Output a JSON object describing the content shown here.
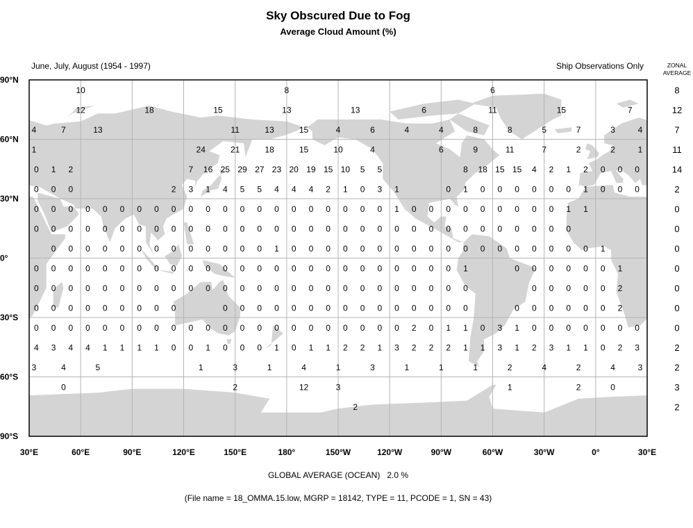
{
  "title": "Sky Obscured Due to Fog",
  "subtitle": "Average Cloud Amount (%)",
  "period": "June, July, August (1954 - 1997)",
  "source_note": "Ship Observations Only",
  "zonal_header": [
    "ZONAL",
    "AVERAGE"
  ],
  "global_average": "GLOBAL AVERAGE (OCEAN)   2.0 %",
  "file_info": "(File name = 18_OMMA.15.low, MGRP = 18142, TYPE = 11, PCODE = 1, SN = 43)",
  "colors": {
    "land": "#d4d4d4",
    "grid": "#b4b4b4",
    "frame": "#000000"
  },
  "chart_data": {
    "type": "heatmap",
    "projection": "equirectangular",
    "lon_range": [
      "30°E",
      "30°E"
    ],
    "lat_range": [
      "90°N",
      "90°S"
    ],
    "lat_labels": [
      "90°N",
      "60°N",
      "30°N",
      "0°",
      "30°S",
      "60°S",
      "90°S"
    ],
    "lon_labels": [
      "30°E",
      "60°E",
      "90°E",
      "120°E",
      "150°E",
      "180°",
      "150°W",
      "120°W",
      "90°W",
      "60°W",
      "30°W",
      "0°",
      "30°E"
    ],
    "grid": true,
    "units": "%",
    "rows": [
      {
        "lat": 85,
        "lon_start": 60,
        "lon_step": 120,
        "values": [
          10,
          8,
          6
        ]
      },
      {
        "lat": 75,
        "lon_start": 60,
        "lon_step": 40,
        "values": [
          12,
          18,
          15,
          13,
          13,
          6,
          11,
          15,
          7
        ]
      },
      {
        "lat": 65,
        "lon_start": 30,
        "lon_step": 20,
        "values": [
          4,
          7,
          13,
          null,
          null,
          null,
          11,
          13,
          15,
          4,
          6,
          4,
          4,
          8,
          8,
          5,
          7,
          3,
          4
        ]
      },
      {
        "lat": 55,
        "lon_start": 30,
        "lon_step": 20,
        "values": [
          1,
          null,
          null,
          null,
          null,
          24,
          21,
          18,
          15,
          10,
          4,
          null,
          6,
          9,
          11,
          7,
          2,
          2,
          1
        ]
      },
      {
        "lat": 45,
        "lon_start": 35,
        "lon_step": 10,
        "values": [
          0,
          1,
          2,
          null,
          null,
          null,
          null,
          null,
          null,
          7,
          16,
          25,
          29,
          27,
          23,
          20,
          19,
          15,
          10,
          5,
          5,
          null,
          null,
          null,
          null,
          8,
          18,
          15,
          15,
          4,
          2,
          1,
          2,
          0,
          0,
          0
        ]
      },
      {
        "lat": 35,
        "lon_start": 35,
        "lon_step": 10,
        "values": [
          0,
          0,
          0,
          null,
          null,
          null,
          null,
          null,
          2,
          3,
          1,
          4,
          5,
          5,
          4,
          4,
          4,
          2,
          1,
          0,
          3,
          1,
          null,
          null,
          0,
          1,
          0,
          0,
          0,
          0,
          0,
          0,
          1,
          0,
          0,
          0
        ]
      },
      {
        "lat": 25,
        "lon_start": 35,
        "lon_step": 10,
        "values": [
          0,
          0,
          0,
          0,
          0,
          0,
          0,
          0,
          0,
          0,
          0,
          0,
          0,
          0,
          0,
          0,
          0,
          0,
          0,
          0,
          0,
          1,
          0,
          0,
          0,
          0,
          0,
          0,
          0,
          0,
          0,
          1,
          1,
          null,
          null,
          null
        ]
      },
      {
        "lat": 15,
        "lon_start": 35,
        "lon_step": 10,
        "values": [
          0,
          0,
          0,
          0,
          0,
          0,
          0,
          0,
          0,
          0,
          0,
          0,
          0,
          0,
          0,
          0,
          0,
          0,
          0,
          0,
          0,
          0,
          0,
          0,
          0,
          0,
          0,
          0,
          0,
          0,
          0,
          0,
          null,
          null,
          null,
          null
        ]
      },
      {
        "lat": 5,
        "lon_start": 35,
        "lon_step": 10,
        "values": [
          null,
          0,
          0,
          0,
          0,
          0,
          0,
          0,
          0,
          0,
          0,
          0,
          0,
          0,
          1,
          0,
          0,
          0,
          0,
          0,
          0,
          0,
          0,
          0,
          0,
          0,
          0,
          0,
          0,
          0,
          0,
          0,
          0,
          1,
          null,
          null
        ]
      },
      {
        "lat": -5,
        "lon_start": 35,
        "lon_step": 10,
        "values": [
          0,
          0,
          0,
          0,
          0,
          0,
          0,
          0,
          0,
          0,
          0,
          0,
          0,
          0,
          0,
          0,
          0,
          0,
          0,
          0,
          0,
          0,
          0,
          0,
          0,
          1,
          null,
          null,
          0,
          0,
          0,
          0,
          0,
          0,
          1,
          null
        ]
      },
      {
        "lat": -15,
        "lon_start": 35,
        "lon_step": 10,
        "values": [
          0,
          0,
          0,
          0,
          0,
          0,
          0,
          0,
          0,
          0,
          0,
          0,
          0,
          0,
          0,
          0,
          0,
          0,
          0,
          0,
          0,
          0,
          0,
          0,
          0,
          0,
          null,
          null,
          null,
          0,
          0,
          0,
          0,
          0,
          2,
          null
        ]
      },
      {
        "lat": -25,
        "lon_start": 35,
        "lon_step": 10,
        "values": [
          0,
          0,
          0,
          0,
          0,
          0,
          0,
          0,
          0,
          null,
          null,
          0,
          0,
          0,
          0,
          0,
          0,
          0,
          0,
          0,
          0,
          0,
          0,
          0,
          0,
          0,
          null,
          null,
          0,
          0,
          0,
          0,
          0,
          0,
          2,
          null
        ]
      },
      {
        "lat": -35,
        "lon_start": 35,
        "lon_step": 10,
        "values": [
          0,
          0,
          0,
          0,
          0,
          0,
          0,
          0,
          0,
          0,
          0,
          0,
          0,
          0,
          0,
          0,
          0,
          0,
          0,
          0,
          0,
          0,
          2,
          0,
          1,
          1,
          0,
          3,
          1,
          0,
          0,
          0,
          0,
          0,
          0,
          0
        ]
      },
      {
        "lat": -45,
        "lon_start": 35,
        "lon_step": 10,
        "values": [
          4,
          3,
          4,
          4,
          1,
          1,
          1,
          1,
          0,
          0,
          1,
          0,
          0,
          0,
          1,
          0,
          1,
          1,
          2,
          2,
          1,
          3,
          2,
          2,
          2,
          1,
          1,
          3,
          1,
          2,
          3,
          1,
          1,
          0,
          2,
          3
        ]
      },
      {
        "lat": -55,
        "lon_start": 30,
        "lon_step": 20,
        "values": [
          3,
          4,
          5,
          null,
          null,
          1,
          3,
          1,
          4,
          1,
          3,
          1,
          1,
          1,
          2,
          4,
          2,
          4,
          3
        ]
      },
      {
        "lat": -65,
        "lon_start": 30,
        "lon_step": 20,
        "values": [
          null,
          0,
          null,
          null,
          null,
          null,
          2,
          null,
          12,
          3,
          null,
          null,
          null,
          null,
          1,
          null,
          2,
          0,
          null
        ]
      },
      {
        "lat": -75,
        "lon_start": 60,
        "lon_step": 40,
        "values": [
          null,
          null,
          null,
          null,
          2,
          null,
          null,
          null,
          null
        ]
      }
    ],
    "zonal_average": [
      {
        "lat": 85,
        "value": 8
      },
      {
        "lat": 75,
        "value": 12
      },
      {
        "lat": 65,
        "value": 7
      },
      {
        "lat": 55,
        "value": 11
      },
      {
        "lat": 45,
        "value": 14
      },
      {
        "lat": 35,
        "value": 2
      },
      {
        "lat": 25,
        "value": 0
      },
      {
        "lat": 15,
        "value": 0
      },
      {
        "lat": 5,
        "value": 0
      },
      {
        "lat": -5,
        "value": 0
      },
      {
        "lat": -15,
        "value": 0
      },
      {
        "lat": -25,
        "value": 0
      },
      {
        "lat": -35,
        "value": 0
      },
      {
        "lat": -45,
        "value": 2
      },
      {
        "lat": -55,
        "value": 2
      },
      {
        "lat": -65,
        "value": 3
      },
      {
        "lat": -75,
        "value": 2
      }
    ]
  }
}
